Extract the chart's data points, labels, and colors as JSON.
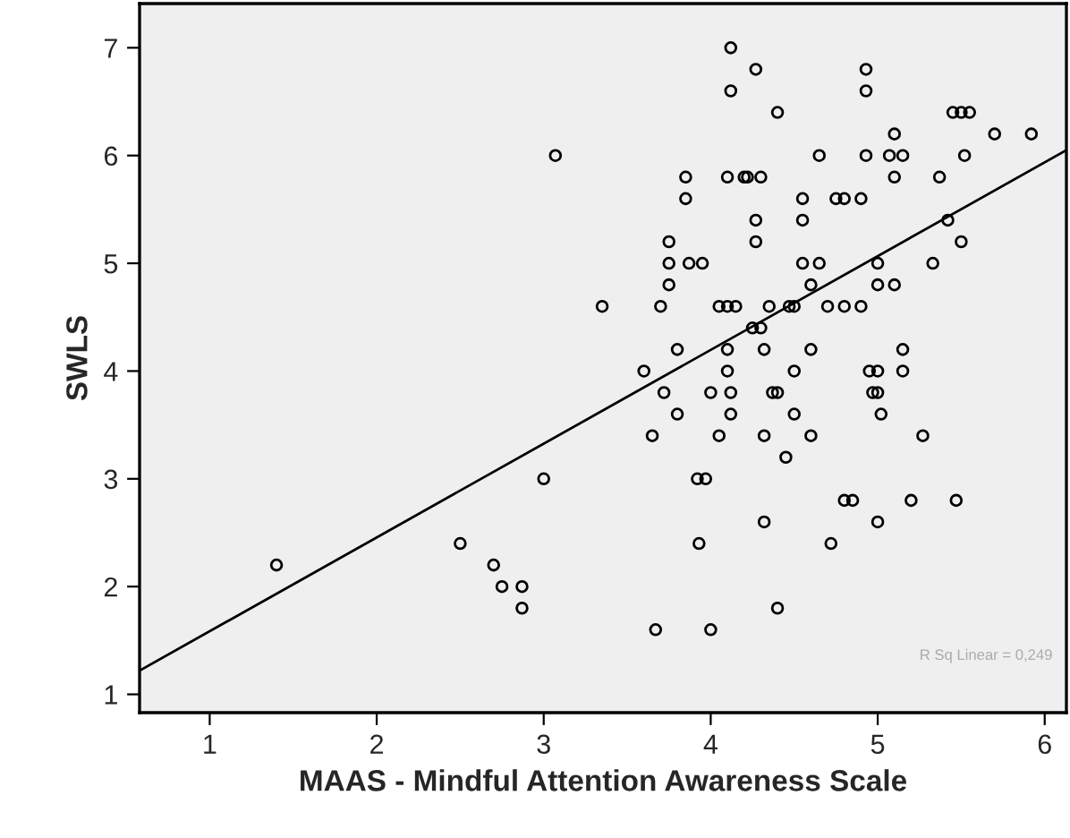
{
  "chart_data": {
    "type": "scatter",
    "xlabel": "MAAS - Mindful Attention Awareness Scale",
    "ylabel": "SWLS",
    "xlim": [
      0.58,
      6.13
    ],
    "ylim": [
      0.83,
      7.41
    ],
    "xticks": [
      1,
      2,
      3,
      4,
      5,
      6
    ],
    "yticks": [
      1,
      2,
      3,
      4,
      5,
      6,
      7
    ],
    "grid": false,
    "annotations": [
      "R Sq Linear = 0,249"
    ],
    "series": [
      {
        "color": "#000000",
        "marker": "circle",
        "x": [
          1.4,
          2.5,
          2.7,
          2.75,
          2.87,
          2.87,
          3.0,
          3.07,
          3.35,
          3.6,
          3.65,
          3.67,
          3.7,
          3.72,
          3.75,
          3.75,
          3.75,
          3.8,
          3.8,
          3.85,
          3.85,
          3.87,
          3.92,
          3.93,
          3.95,
          3.97,
          4.0,
          4.0,
          4.05,
          4.05,
          4.1,
          4.1,
          4.1,
          4.1,
          4.12,
          4.12,
          4.12,
          4.12,
          4.15,
          4.2,
          4.22,
          4.25,
          4.27,
          4.27,
          4.27,
          4.3,
          4.3,
          4.32,
          4.32,
          4.32,
          4.35,
          4.37,
          4.4,
          4.4,
          4.4,
          4.45,
          4.47,
          4.5,
          4.5,
          4.5,
          4.55,
          4.55,
          4.55,
          4.6,
          4.6,
          4.6,
          4.65,
          4.65,
          4.7,
          4.72,
          4.75,
          4.8,
          4.8,
          4.85,
          4.8,
          4.9,
          4.9,
          4.93,
          4.93,
          4.93,
          4.95,
          4.97,
          5.0,
          5.0,
          5.0,
          5.0,
          5.0,
          5.02,
          5.07,
          5.1,
          5.1,
          5.1,
          5.15,
          5.15,
          5.15,
          5.2,
          5.27,
          5.33,
          5.37,
          5.42,
          5.45,
          5.47,
          5.5,
          5.5,
          5.52,
          5.55,
          5.7,
          5.92
        ],
        "values": [
          2.2,
          2.4,
          2.2,
          2.0,
          2.0,
          1.8,
          3.0,
          6.0,
          4.6,
          4.0,
          3.4,
          1.6,
          4.6,
          3.8,
          5.0,
          5.2,
          4.8,
          4.2,
          3.6,
          5.8,
          5.6,
          5.0,
          3.0,
          2.4,
          5.0,
          3.0,
          3.8,
          1.6,
          3.4,
          4.6,
          5.8,
          4.6,
          4.2,
          4.0,
          3.8,
          3.6,
          7.0,
          6.6,
          4.6,
          5.8,
          5.8,
          4.4,
          6.8,
          5.4,
          5.2,
          4.4,
          5.8,
          4.2,
          3.4,
          2.6,
          4.6,
          3.8,
          6.4,
          3.8,
          1.8,
          3.2,
          4.6,
          4.0,
          4.6,
          3.6,
          5.0,
          5.4,
          5.6,
          4.2,
          3.4,
          4.8,
          6.0,
          5.0,
          4.6,
          2.4,
          5.6,
          5.6,
          2.8,
          2.8,
          4.6,
          4.6,
          5.6,
          6.8,
          6.6,
          6.0,
          4.0,
          3.8,
          4.0,
          5.0,
          4.8,
          3.8,
          2.6,
          3.6,
          6.0,
          6.2,
          5.8,
          4.8,
          6.0,
          4.2,
          4.0,
          2.8,
          3.4,
          5.0,
          5.8,
          5.4,
          6.4,
          2.8,
          6.4,
          5.2,
          6.0,
          6.4,
          6.2,
          6.2
        ]
      },
      {
        "type": "line",
        "color": "#000000",
        "x": [
          0.58,
          6.13
        ],
        "values": [
          1.22,
          6.05
        ]
      }
    ]
  }
}
